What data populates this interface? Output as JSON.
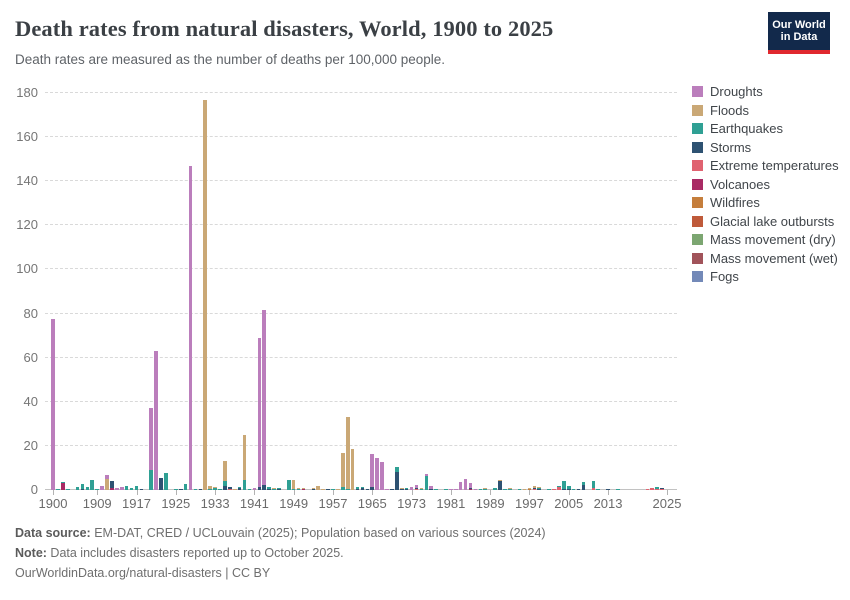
{
  "header": {
    "title": "Death rates from natural disasters, World, 1900 to 2025",
    "subtitle": "Death rates are measured as the number of deaths per 100,000 people.",
    "logo_line1": "Our World",
    "logo_line2": "in Data"
  },
  "footer": {
    "source_label": "Data source:",
    "source_text": " EM-DAT, CRED / UCLouvain (2025); Population based on various sources (2024)",
    "note_label": "Note:",
    "note_text": " Data includes disasters reported up to October 2025.",
    "link_text": "OurWorldinData.org/natural-disasters | CC BY"
  },
  "legend": [
    {
      "id": "droughts",
      "label": "Droughts",
      "color": "#bb7ebc"
    },
    {
      "id": "floods",
      "label": "Floods",
      "color": "#caa876"
    },
    {
      "id": "earthquakes",
      "label": "Earthquakes",
      "color": "#2fa094"
    },
    {
      "id": "storms",
      "label": "Storms",
      "color": "#2e5272"
    },
    {
      "id": "extreme_temperatures",
      "label": "Extreme temperatures",
      "color": "#e06270"
    },
    {
      "id": "volcanoes",
      "label": "Volcanoes",
      "color": "#a92a64"
    },
    {
      "id": "wildfires",
      "label": "Wildfires",
      "color": "#c57e3c"
    },
    {
      "id": "glacial_lake_outbursts",
      "label": "Glacial lake outbursts",
      "color": "#bf5a3a"
    },
    {
      "id": "mass_movement_dry",
      "label": "Mass movement (dry)",
      "color": "#7ca671"
    },
    {
      "id": "mass_movement_wet",
      "label": "Mass movement (wet)",
      "color": "#a1535a"
    },
    {
      "id": "fogs",
      "label": "Fogs",
      "color": "#7389b8"
    }
  ],
  "chart_data": {
    "type": "bar",
    "stacked": true,
    "title": "Death rates from natural disasters, World, 1900 to 2025",
    "xlabel": "",
    "ylabel": "Deaths per 100,000 people",
    "ylim": [
      0,
      180
    ],
    "yticks": [
      0,
      20,
      40,
      60,
      80,
      100,
      120,
      140,
      160,
      180
    ],
    "x_range": [
      1900,
      2025
    ],
    "xticks": [
      1900,
      1909,
      1917,
      1925,
      1933,
      1941,
      1949,
      1957,
      1965,
      1973,
      1981,
      1989,
      1997,
      2005,
      2013,
      2025
    ],
    "grid": true,
    "legend_position": "right",
    "stack_order_bottom_to_top": [
      "fogs",
      "mass_movement_wet",
      "mass_movement_dry",
      "glacial_lake_outbursts",
      "wildfires",
      "volcanoes",
      "extreme_temperatures",
      "storms",
      "earthquakes",
      "floods",
      "droughts"
    ],
    "values_by_year": {
      "1900": {
        "droughts": 77.5
      },
      "1901": {
        "earthquakes": 0.3
      },
      "1902": {
        "volcanoes": 3.0,
        "earthquakes": 0.5
      },
      "1903": {
        "earthquakes": 0.6
      },
      "1905": {
        "earthquakes": 1.3
      },
      "1906": {
        "earthquakes": 2.2,
        "storms": 0.4
      },
      "1907": {
        "earthquakes": 1.4
      },
      "1908": {
        "earthquakes": 4.5
      },
      "1909": {
        "earthquakes": 0.4
      },
      "1910": {
        "droughts": 1.6
      },
      "1911": {
        "floods": 5.2,
        "droughts": 1.4
      },
      "1912": {
        "volcanoes": 1.1,
        "storms": 3.0
      },
      "1913": {
        "droughts": 0.9
      },
      "1914": {
        "droughts": 1.3
      },
      "1915": {
        "earthquakes": 1.9
      },
      "1916": {
        "earthquakes": 0.7
      },
      "1917": {
        "earthquakes": 1.6
      },
      "1918": {
        "storms": 0.3
      },
      "1920": {
        "earthquakes": 9.0,
        "droughts": 28.0
      },
      "1921": {
        "droughts": 63.0
      },
      "1922": {
        "storms": 5.3
      },
      "1923": {
        "earthquakes": 7.7
      },
      "1925": {
        "earthquakes": 0.5
      },
      "1926": {
        "storms": 0.5
      },
      "1927": {
        "earthquakes": 2.8
      },
      "1928": {
        "droughts": 147.0
      },
      "1929": {
        "earthquakes": 0.5
      },
      "1930": {
        "storms": 0.3
      },
      "1931": {
        "floods": 177.0
      },
      "1932": {
        "floods": 1.4,
        "earthquakes": 0.4
      },
      "1933": {
        "earthquakes": 0.8,
        "floods": 0.7
      },
      "1934": {
        "earthquakes": 0.4
      },
      "1935": {
        "storms": 1.8,
        "earthquakes": 2.2,
        "floods": 9.0
      },
      "1936": {
        "storms": 0.7,
        "extreme_temperatures": 0.4
      },
      "1937": {
        "floods": 0.6
      },
      "1938": {
        "storms": 1.0,
        "earthquakes": 0.3
      },
      "1939": {
        "earthquakes": 4.5,
        "floods": 20.5
      },
      "1940": {
        "earthquakes": 0.5
      },
      "1941": {
        "droughts": 0.9
      },
      "1942": {
        "storms": 1.4,
        "droughts": 67.5
      },
      "1943": {
        "storms": 2.3,
        "droughts": 79.5
      },
      "1944": {
        "earthquakes": 0.7,
        "storms": 0.4
      },
      "1945": {
        "earthquakes": 0.6,
        "floods": 0.4
      },
      "1946": {
        "earthquakes": 0.5,
        "storms": 0.4
      },
      "1948": {
        "earthquakes": 4.6
      },
      "1949": {
        "floods": 4.3,
        "earthquakes": 0.4
      },
      "1950": {
        "earthquakes": 0.4,
        "floods": 0.4
      },
      "1951": {
        "volcanoes": 0.3,
        "floods": 0.3
      },
      "1953": {
        "floods": 0.6,
        "storms": 0.4
      },
      "1954": {
        "floods": 1.9
      },
      "1955": {
        "floods": 0.4
      },
      "1956": {
        "storms": 0.3
      },
      "1957": {
        "earthquakes": 0.4
      },
      "1958": {
        "floods": 0.6
      },
      "1959": {
        "earthquakes": 1.2,
        "floods": 15.5
      },
      "1960": {
        "earthquakes": 0.5,
        "floods": 32.5
      },
      "1961": {
        "floods": 18.5
      },
      "1962": {
        "earthquakes": 0.7,
        "storms": 0.3
      },
      "1963": {
        "storms": 1.0,
        "earthquakes": 0.3
      },
      "1964": {
        "storms": 0.4
      },
      "1965": {
        "storms": 1.5,
        "droughts": 14.8
      },
      "1966": {
        "droughts": 14.4
      },
      "1967": {
        "droughts": 12.9
      },
      "1968": {
        "droughts": 0.6
      },
      "1969": {
        "storms": 0.5
      },
      "1970": {
        "storms": 8.3,
        "earthquakes": 2.3
      },
      "1971": {
        "storms": 0.5,
        "floods": 0.3
      },
      "1972": {
        "earthquakes": 0.5,
        "storms": 0.3
      },
      "1973": {
        "droughts": 1.5
      },
      "1974": {
        "droughts": 1.5,
        "extreme_temperatures": 0.4,
        "storms": 0.3
      },
      "1975": {
        "floods": 0.5,
        "earthquakes": 0.3
      },
      "1976": {
        "earthquakes": 6.3,
        "droughts": 0.9
      },
      "1977": {
        "droughts": 1.3,
        "storms": 0.4
      },
      "1978": {
        "earthquakes": 0.4
      },
      "1980": {
        "earthquakes": 0.3
      },
      "1981": {
        "droughts": 0.5
      },
      "1982": {
        "droughts": 0.4
      },
      "1983": {
        "droughts": 3.8
      },
      "1984": {
        "droughts": 4.9
      },
      "1985": {
        "droughts": 2.3,
        "volcanoes": 0.6,
        "storms": 0.4
      },
      "1986": {
        "droughts": 0.4
      },
      "1987": {
        "earthquakes": 0.3
      },
      "1988": {
        "earthquakes": 0.6,
        "floods": 0.3
      },
      "1990": {
        "earthquakes": 1.0
      },
      "1991": {
        "storms": 3.9,
        "floods": 0.6
      },
      "1992": {
        "earthquakes": 0.3
      },
      "1993": {
        "earthquakes": 0.4,
        "floods": 0.3
      },
      "1995": {
        "earthquakes": 0.3
      },
      "1996": {
        "floods": 0.3
      },
      "1997": {
        "wildfires": 0.3,
        "floods": 0.2
      },
      "1998": {
        "floods": 1.0,
        "storms": 0.5,
        "extreme_temperatures": 0.4
      },
      "1999": {
        "earthquakes": 0.6,
        "storms": 0.5,
        "floods": 0.4
      },
      "2001": {
        "earthquakes": 0.4
      },
      "2002": {
        "extreme_temperatures": 0.2
      },
      "2003": {
        "extreme_temperatures": 1.2,
        "earthquakes": 0.5
      },
      "2004": {
        "earthquakes": 3.6,
        "storms": 0.3
      },
      "2005": {
        "earthquakes": 1.4,
        "storms": 0.3
      },
      "2006": {
        "earthquakes": 0.2
      },
      "2007": {
        "storms": 0.3
      },
      "2008": {
        "storms": 2.1,
        "earthquakes": 1.4
      },
      "2010": {
        "extreme_temperatures": 0.9,
        "earthquakes": 3.3
      },
      "2011": {
        "earthquakes": 0.4
      },
      "2013": {
        "storms": 0.5
      },
      "2015": {
        "earthquakes": 0.2
      },
      "2021": {
        "extreme_temperatures": 0.2
      },
      "2022": {
        "extreme_temperatures": 0.7
      },
      "2023": {
        "earthquakes": 0.8,
        "extreme_temperatures": 0.6
      },
      "2024": {
        "extreme_temperatures": 0.5,
        "storms": 0.2
      }
    }
  }
}
